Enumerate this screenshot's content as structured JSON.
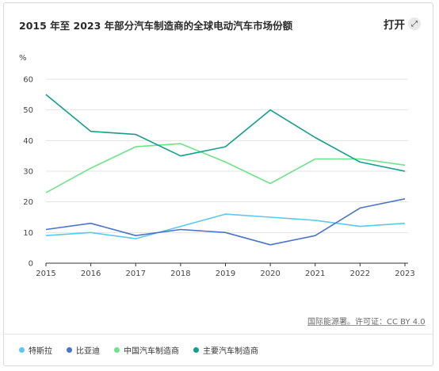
{
  "header": {
    "title": "2015 年至 2023 年部分汽车制造商的全球电动汽车市场份额"
  },
  "open_button": {
    "label": "打开",
    "icon": "expand-icon"
  },
  "source_link": {
    "text": "国际能源署。许可证：CC BY 4.0"
  },
  "chart_data": {
    "type": "line",
    "ylabel": "%",
    "x": [
      "2015",
      "2016",
      "2017",
      "2018",
      "2019",
      "2020",
      "2021",
      "2022",
      "2023"
    ],
    "ylim": [
      0,
      60
    ],
    "yticks": [
      0,
      10,
      20,
      30,
      40,
      50,
      60
    ],
    "grid": true,
    "legend_position": "bottom",
    "series": [
      {
        "name": "特斯拉",
        "color": "#5ac8f0",
        "values": [
          9,
          10,
          8,
          12,
          16,
          15,
          14,
          12,
          13
        ]
      },
      {
        "name": "比亚迪",
        "color": "#4a74c9",
        "values": [
          11,
          13,
          9,
          11,
          10,
          6,
          9,
          18,
          21
        ]
      },
      {
        "name": "中国汽车制造商",
        "color": "#6ee38a",
        "values": [
          23,
          31,
          38,
          39,
          33,
          26,
          34,
          34,
          32
        ]
      },
      {
        "name": "主要汽车制造商",
        "color": "#159e8e",
        "values": [
          55,
          43,
          42,
          35,
          38,
          50,
          41,
          33,
          30
        ]
      }
    ]
  }
}
